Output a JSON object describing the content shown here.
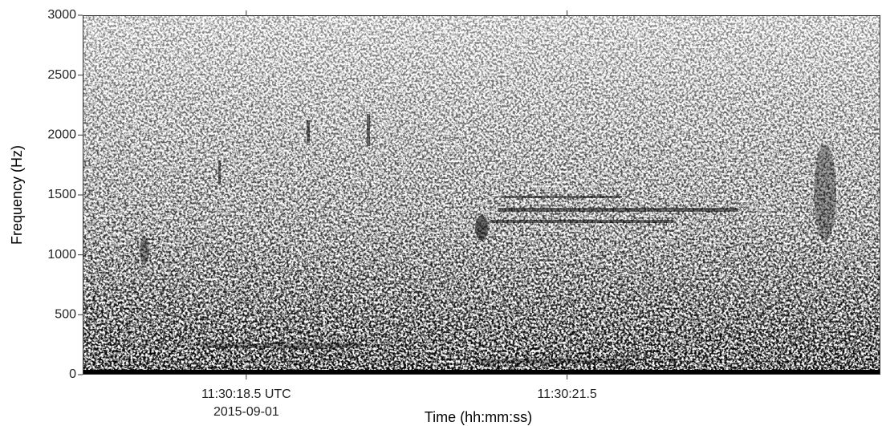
{
  "chart_data": {
    "type": "spectrogram",
    "y_label": "Frequency (Hz)",
    "x_label": "Time (hh:mm:ss)",
    "ylim": [
      0,
      3000
    ],
    "yticks": [
      0,
      500,
      1000,
      1500,
      2000,
      2500,
      3000
    ],
    "xlim": [
      "11:30:16.97",
      "11:30:24.43"
    ],
    "xticks": [
      {
        "value": "11:30:18.5",
        "label": "11:30:18.5 UTC"
      },
      "11:30:21.5"
    ],
    "date_label": "2015-09-01",
    "color": "#000000"
  }
}
